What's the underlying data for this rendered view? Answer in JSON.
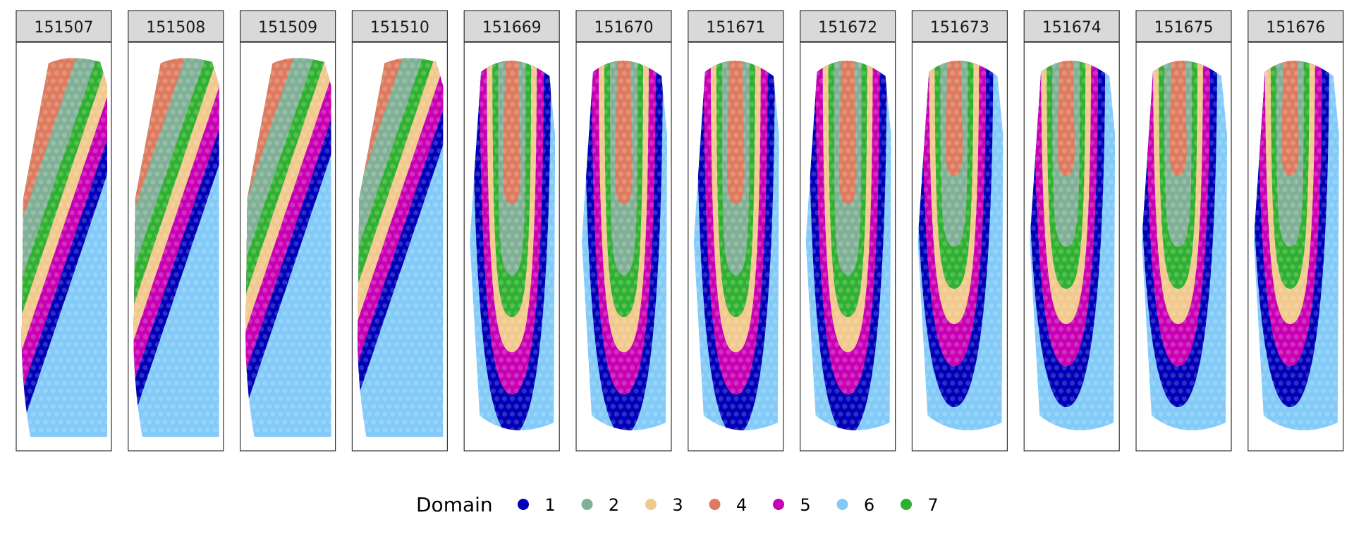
{
  "chart_data": {
    "type": "scatter",
    "title": "",
    "description_kind": "spatial domain maps per sample",
    "samples": [
      "151507",
      "151508",
      "151509",
      "151510",
      "151669",
      "151670",
      "151671",
      "151672",
      "151673",
      "151674",
      "151675",
      "151676"
    ],
    "legend": {
      "title": "Domain",
      "position": "bottom",
      "entries": [
        {
          "label": "1",
          "color": "#0000B8"
        },
        {
          "label": "2",
          "color": "#80B095"
        },
        {
          "label": "3",
          "color": "#F2C98C"
        },
        {
          "label": "4",
          "color": "#DE7A5E"
        },
        {
          "label": "5",
          "color": "#C800B4"
        },
        {
          "label": "6",
          "color": "#82CAF8"
        },
        {
          "label": "7",
          "color": "#30B030"
        }
      ]
    }
  }
}
